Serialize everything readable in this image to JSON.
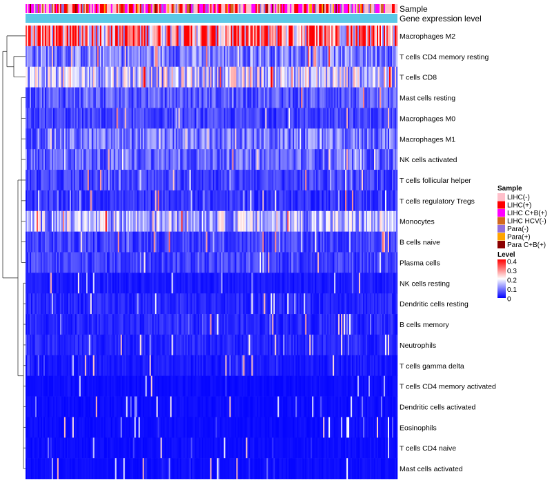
{
  "chart_data": {
    "type": "heatmap",
    "annotation_tracks": [
      "Sample",
      "Gene expression level"
    ],
    "rows": [
      {
        "name": "Macrophages M2",
        "mean": 0.3
      },
      {
        "name": "T cells CD4 memory resting",
        "mean": 0.1
      },
      {
        "name": "T cells CD8",
        "mean": 0.16
      },
      {
        "name": "Mast cells resting",
        "mean": 0.07
      },
      {
        "name": "Macrophages M0",
        "mean": 0.05
      },
      {
        "name": "Macrophages M1",
        "mean": 0.09
      },
      {
        "name": "NK cells activated",
        "mean": 0.08
      },
      {
        "name": "T cells follicular helper",
        "mean": 0.05
      },
      {
        "name": "T cells regulatory  Tregs",
        "mean": 0.04
      },
      {
        "name": "Monocytes",
        "mean": 0.14
      },
      {
        "name": "B cells naive",
        "mean": 0.05
      },
      {
        "name": "Plasma cells",
        "mean": 0.05
      },
      {
        "name": "NK cells resting",
        "mean": 0.02
      },
      {
        "name": "Dendritic cells resting",
        "mean": 0.03
      },
      {
        "name": "B cells memory",
        "mean": 0.03
      },
      {
        "name": "Neutrophils",
        "mean": 0.03
      },
      {
        "name": "T cells gamma delta",
        "mean": 0.02
      },
      {
        "name": "T cells CD4 memory activated",
        "mean": 0.01
      },
      {
        "name": "Dendritic cells activated",
        "mean": 0.01
      },
      {
        "name": "Eosinophils",
        "mean": 0.01
      },
      {
        "name": "T cells CD4 naive",
        "mean": 0.01
      },
      {
        "name": "Mast cells activated",
        "mean": 0.01
      }
    ],
    "n_samples": 270,
    "sample_legend": {
      "title": "Sample",
      "entries": [
        {
          "label": "LIHC(-)",
          "color": "#ffc0cb"
        },
        {
          "label": "LIHC(+)",
          "color": "#ff0000"
        },
        {
          "label": "LIHC C+B(+)",
          "color": "#ff00ff"
        },
        {
          "label": "LIHC HCV(-)",
          "color": "#d2691e"
        },
        {
          "label": "Para(-)",
          "color": "#9370db"
        },
        {
          "label": "Para(+)",
          "color": "#ffa500"
        },
        {
          "label": "Para C+B(+)",
          "color": "#8b0000"
        }
      ]
    },
    "level_legend": {
      "title": "Level",
      "ticks": [
        "0.4",
        "0.3",
        "0.2",
        "0.1",
        "0"
      ],
      "min": 0,
      "max": 0.4,
      "colors": [
        "#0000ff",
        "#ffffff",
        "#ff0000"
      ]
    },
    "gene_expression_color": "#5bc8e6"
  }
}
